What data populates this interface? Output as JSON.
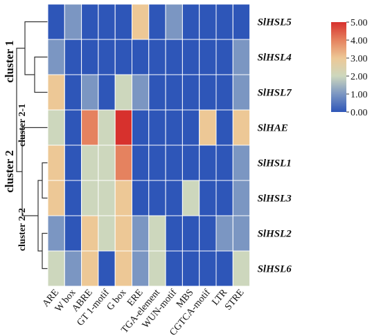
{
  "chart_data": {
    "type": "heatmap",
    "rows": [
      "SlHSL5",
      "SlHSL4",
      "SlHSL7",
      "SlHAE",
      "SlHSL1",
      "SlHSL3",
      "SlHSL2",
      "SlHSL6"
    ],
    "columns": [
      "ARE",
      "W box",
      "ABRE",
      "GT 1-motif",
      "G box",
      "ERE",
      "TGA-element",
      "WUN-motif",
      "MBS",
      "CGTCA-motif",
      "LTR",
      "STRE"
    ],
    "values": [
      [
        0,
        1,
        0,
        0,
        0,
        3,
        0,
        1,
        0,
        0,
        0,
        0
      ],
      [
        1,
        0,
        0,
        0,
        0,
        0,
        0,
        0,
        0,
        0,
        0,
        1
      ],
      [
        3,
        0,
        1,
        0,
        2,
        1,
        0,
        0,
        0,
        0,
        0,
        1
      ],
      [
        2,
        0,
        4,
        2,
        5,
        0,
        0,
        0,
        0,
        3,
        0,
        3
      ],
      [
        3,
        0,
        2,
        2,
        4,
        0,
        0,
        0,
        0,
        0,
        0,
        1
      ],
      [
        3,
        0,
        2,
        2,
        3,
        0,
        0,
        0,
        2,
        0,
        0,
        1
      ],
      [
        1,
        0,
        3,
        2,
        3,
        1,
        2,
        0,
        0,
        0,
        1,
        1
      ],
      [
        2,
        1,
        3,
        0,
        3,
        1,
        2,
        0,
        0,
        0,
        0,
        2
      ]
    ],
    "color_scale": {
      "min": 0,
      "max": 5,
      "ticks": [
        "0.00",
        "1.00",
        "2.00",
        "3.00",
        "4.00",
        "5.00"
      ],
      "colors": [
        "#2e56b8",
        "#7b96c2",
        "#cdd7bd",
        "#edc896",
        "#e5825f",
        "#d7312d"
      ]
    },
    "legend_position": "top-right",
    "clusters": {
      "cluster_1": "cluster 1",
      "cluster_2": "cluster 2",
      "cluster_2_1": "cluster 2-1",
      "cluster_2_2": "cluster 2-2"
    }
  }
}
